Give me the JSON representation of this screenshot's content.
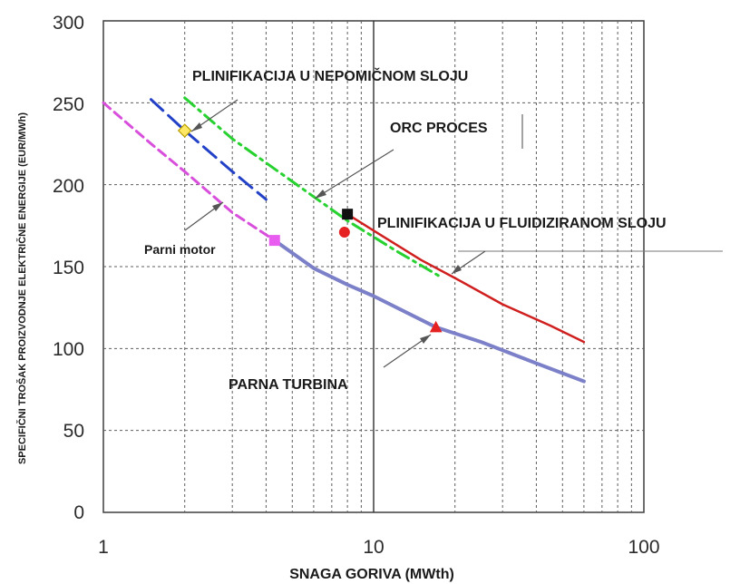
{
  "chart_data": {
    "type": "line",
    "xlabel": "SNAGA GORIVA (MWth)",
    "ylabel": "SPECIFIČNI TROŠAK PROIZVODNJE ELEKTRIČNE ENERGIJE (EUR/MWh)",
    "xscale": "log",
    "xlim": [
      1,
      100
    ],
    "ylim": [
      0,
      300
    ],
    "x_ticks": [
      "1",
      "10",
      "100"
    ],
    "y_ticks": [
      "0",
      "50",
      "100",
      "150",
      "200",
      "250",
      "300"
    ],
    "grid": true,
    "series": [
      {
        "id": "parni-motor",
        "name": "Parni motor",
        "color": "#d84fdc",
        "dash": "dashed",
        "x": [
          1.0,
          1.5,
          2.0,
          3.0,
          4.3
        ],
        "y": [
          250,
          225,
          208,
          183,
          166
        ]
      },
      {
        "id": "plinifikacija-nepomicni-sloj",
        "name": "PLINIFIKACIJA U NEPOMIČNOM SLOJU",
        "color": "#2241c7",
        "dash": "long-dashed",
        "x": [
          1.5,
          2.0,
          3.0,
          4.0
        ],
        "y": [
          252,
          233,
          208,
          191
        ]
      },
      {
        "id": "orc-proces",
        "name": "ORC PROCES",
        "color": "#27d12f",
        "dash": "dash-dot",
        "x": [
          2.0,
          3.0,
          5.0,
          8.0,
          12.0,
          18.0
        ],
        "y": [
          253,
          228,
          202,
          178,
          160,
          143
        ]
      },
      {
        "id": "plinifikacija-fluidizirani-sloj",
        "name": "PLINIFIKACIJA U FLUIDIZIRANOM SLOJU",
        "color": "#d01f1f",
        "dash": "solid",
        "x": [
          8.0,
          10.0,
          15.0,
          20.0,
          30.0,
          45.0,
          60.0
        ],
        "y": [
          182,
          172,
          154,
          143,
          127,
          114,
          104
        ]
      },
      {
        "id": "parna-turbina",
        "name": "PARNA TURBINA",
        "color": "#7b80c8",
        "dash": "solid",
        "x": [
          4.3,
          6.0,
          8.0,
          10.0,
          17.0,
          25.0,
          40.0,
          60.0
        ],
        "y": [
          166,
          149,
          139,
          132,
          113,
          104,
          91,
          80
        ]
      }
    ],
    "markers": [
      {
        "id": "marker-yellow-diamond",
        "shape": "diamond",
        "fill": "#ffe766",
        "stroke": "#b8a000",
        "x": 2.0,
        "y": 233
      },
      {
        "id": "marker-magenta-square",
        "shape": "square",
        "fill": "#e85df0",
        "stroke": "#e85df0",
        "x": 4.3,
        "y": 166
      },
      {
        "id": "marker-black-square",
        "shape": "square",
        "fill": "#111111",
        "stroke": "#111111",
        "x": 8.0,
        "y": 182
      },
      {
        "id": "marker-red-circle",
        "shape": "circle",
        "fill": "#e52121",
        "stroke": "#e52121",
        "x": 7.8,
        "y": 171
      },
      {
        "id": "marker-red-triangle",
        "shape": "triangle",
        "fill": "#e52121",
        "stroke": "#e52121",
        "x": 17.0,
        "y": 113
      }
    ],
    "annotations": [
      {
        "id": "label-plinifikacija-nepomicni",
        "text": "PLINIFIKACIJA U NEPOMIČNOM SLOJU"
      },
      {
        "id": "label-orc-proces",
        "text": "ORC PROCES"
      },
      {
        "id": "label-plinifikacija-fluidizirani",
        "text": "PLINIFIKACIJA U FLUIDIZIRANOM SLOJU"
      },
      {
        "id": "label-parni-motor",
        "text": "Parni motor"
      },
      {
        "id": "label-parna-turbina",
        "text": "PARNA TURBINA"
      }
    ]
  }
}
